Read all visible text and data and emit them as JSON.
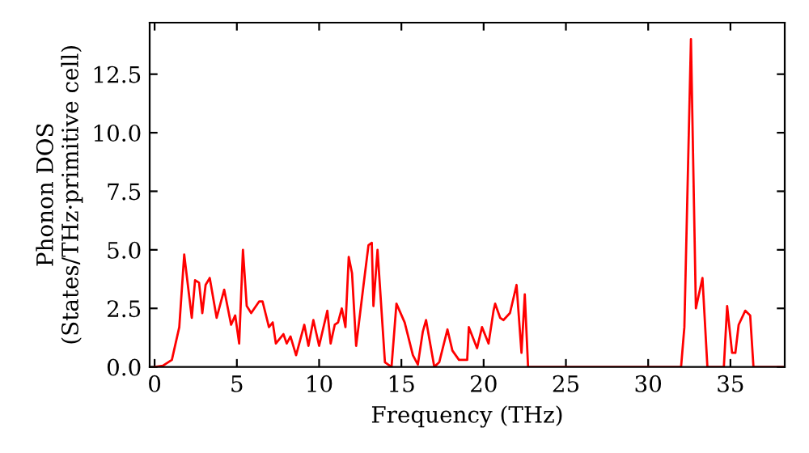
{
  "chart_data": {
    "type": "line",
    "xlabel": "Frequency (THz)",
    "ylabel": "Phonon DOS\n(States/THz·primitive cell)",
    "xlim": [
      -0.3,
      38.3
    ],
    "ylim": [
      0,
      14.7
    ],
    "xticks": [
      0,
      5,
      10,
      15,
      20,
      25,
      30,
      35
    ],
    "yticks": [
      {
        "value": 0,
        "label": "0.0"
      },
      {
        "value": 2.5,
        "label": "2.5"
      },
      {
        "value": 5,
        "label": "5.0"
      },
      {
        "value": 7.5,
        "label": "7.5"
      },
      {
        "value": 10,
        "label": "10.0"
      },
      {
        "value": 12.5,
        "label": "12.5"
      }
    ],
    "grid": false,
    "line_style": "solid",
    "series": [
      {
        "color": "#ff0000",
        "x": [
          0,
          0.5,
          1.05,
          1.5,
          1.8,
          2.26,
          2.46,
          2.7,
          2.9,
          3.1,
          3.35,
          3.77,
          4.23,
          4.65,
          4.9,
          5.14,
          5.37,
          5.6,
          5.87,
          6.36,
          6.56,
          6.95,
          7.18,
          7.37,
          7.83,
          8.03,
          8.26,
          8.6,
          9.1,
          9.35,
          9.65,
          10.0,
          10.5,
          10.7,
          10.95,
          11.15,
          11.38,
          11.6,
          11.8,
          12.0,
          12.25,
          12.7,
          13.0,
          13.2,
          13.3,
          13.55,
          14.0,
          14.4,
          14.7,
          15.2,
          15.7,
          16.0,
          16.3,
          16.5,
          16.8,
          17.0,
          17.3,
          17.8,
          18.1,
          18.5,
          19.0,
          19.1,
          19.6,
          19.9,
          20.3,
          20.6,
          20.7,
          21.0,
          21.2,
          21.6,
          22.0,
          22.3,
          22.5,
          22.7,
          32.0,
          32.2,
          32.6,
          32.9,
          33.3,
          33.6,
          34.6,
          34.8,
          35.1,
          35.3,
          35.5,
          35.9,
          36.2,
          36.4,
          38.3
        ],
        "values": [
          0,
          0.05,
          0.3,
          1.7,
          4.8,
          2.1,
          3.7,
          3.6,
          2.3,
          3.5,
          3.8,
          2.1,
          3.3,
          1.8,
          2.2,
          1.0,
          5.0,
          2.6,
          2.3,
          2.8,
          2.8,
          1.7,
          1.9,
          1.0,
          1.4,
          1.0,
          1.3,
          0.5,
          1.8,
          0.9,
          2.0,
          0.9,
          2.4,
          1.0,
          1.8,
          1.9,
          2.5,
          1.7,
          4.7,
          4.0,
          0.9,
          3.5,
          5.2,
          5.3,
          2.6,
          5.0,
          0.2,
          0,
          2.7,
          1.9,
          0.5,
          0.1,
          1.5,
          2.0,
          0.8,
          0,
          0.2,
          1.6,
          0.7,
          0.3,
          0.3,
          1.7,
          0.8,
          1.7,
          1.0,
          2.4,
          2.7,
          2.1,
          2.0,
          2.3,
          3.5,
          0.6,
          3.1,
          0,
          0,
          1.7,
          14.0,
          2.5,
          3.8,
          0,
          0,
          2.6,
          0.6,
          0.6,
          1.8,
          2.4,
          2.2,
          0,
          0
        ]
      }
    ]
  }
}
